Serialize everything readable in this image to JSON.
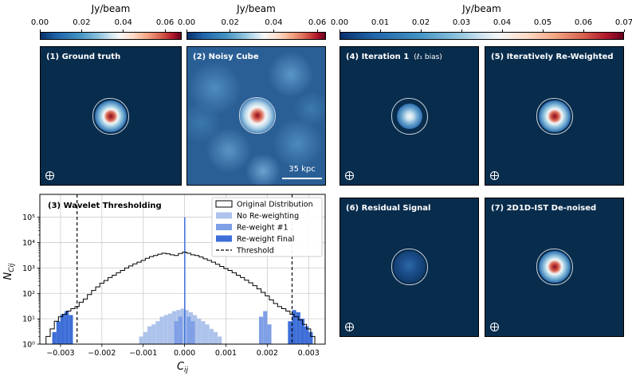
{
  "colorbars": {
    "left": {
      "title": "Jy/beam",
      "ticks": [
        "0.00",
        "0.02",
        "0.04",
        "0.06"
      ],
      "vmin": 0,
      "vmax": 0.068,
      "tick_values": [
        0,
        0.02,
        0.04,
        0.06
      ]
    },
    "middle": {
      "title": "Jy/beam",
      "ticks": [
        "0.00",
        "0.02",
        "0.04",
        "0.06"
      ],
      "vmin": 0,
      "vmax": 0.064,
      "tick_values": [
        0,
        0.02,
        0.04,
        0.06
      ]
    },
    "right": {
      "title": "Jy/beam",
      "ticks": [
        "0.00",
        "0.01",
        "0.02",
        "0.03",
        "0.04",
        "0.05",
        "0.06",
        "0.07"
      ],
      "vmin": 0,
      "vmax": 0.07,
      "tick_values": [
        0,
        0.01,
        0.02,
        0.03,
        0.04,
        0.05,
        0.06,
        0.07
      ]
    }
  },
  "panels": {
    "p1": {
      "label": "(1) Ground truth"
    },
    "p2": {
      "label": "(2) Noisy Cube",
      "scalebar": "35 kpc"
    },
    "p4": {
      "label": "(4) Iteration 1",
      "sublabel": "(ℓ₁ bias)"
    },
    "p5": {
      "label": "(5) Iteratively Re-Weighted"
    },
    "p6": {
      "label": "(6) Residual Signal"
    },
    "p7": {
      "label": "(7) 2D1D-IST De-noised"
    }
  },
  "chart_data": {
    "type": "histogram",
    "title": "(3) Wavelet Thresholding",
    "xlabel": "C_ij",
    "ylabel": "N_Cij",
    "xlim": [
      -0.0035,
      0.0034
    ],
    "ylim_log10": [
      0,
      5.9
    ],
    "x_ticks": [
      -0.003,
      -0.002,
      -0.001,
      0.0,
      0.001,
      0.002,
      0.003
    ],
    "x_tick_labels": [
      "−0.003",
      "−0.002",
      "−0.001",
      "0.000",
      "0.001",
      "0.002",
      "0.003"
    ],
    "y_ticks_exp": [
      0,
      1,
      2,
      3,
      4,
      5
    ],
    "y_tick_labels": [
      "10⁰",
      "10¹",
      "10²",
      "10³",
      "10⁴",
      "10⁵"
    ],
    "threshold": [
      -0.0026,
      0.0026
    ],
    "legend": [
      "Original Distribution",
      "No Re-weighting",
      "Re-weight #1",
      "Re-weight Final",
      "Threshold"
    ],
    "legend_position": "top-right",
    "series": [
      {
        "name": "Original Distribution",
        "x": [
          -0.0033,
          -0.0032,
          -0.0031,
          -0.003,
          -0.0029,
          -0.0028,
          -0.0027,
          -0.0026,
          -0.0025,
          -0.0024,
          -0.0023,
          -0.0022,
          -0.0021,
          -0.002,
          -0.0019,
          -0.0018,
          -0.0017,
          -0.0016,
          -0.0015,
          -0.0014,
          -0.0013,
          -0.0012,
          -0.0011,
          -0.001,
          -0.0009,
          -0.0008,
          -0.0007,
          -0.0006,
          -0.0005,
          -0.0004,
          -0.0003,
          -0.0002,
          -0.0001,
          0.0,
          0.0001,
          0.0002,
          0.0003,
          0.0004,
          0.0005,
          0.0006,
          0.0007,
          0.0008,
          0.0009,
          0.001,
          0.0011,
          0.0012,
          0.0013,
          0.0014,
          0.0015,
          0.0016,
          0.0017,
          0.0018,
          0.0019,
          0.002,
          0.0021,
          0.0022,
          0.0023,
          0.0024,
          0.0025,
          0.0026,
          0.0027,
          0.0028,
          0.0029,
          0.003,
          0.0031,
          0.0032
        ],
        "values": [
          2,
          4,
          8,
          12,
          15,
          20,
          25,
          30,
          45,
          60,
          90,
          130,
          180,
          250,
          320,
          420,
          520,
          650,
          800,
          1000,
          1200,
          1450,
          1700,
          2000,
          2400,
          2800,
          3100,
          3500,
          3800,
          3600,
          3300,
          3100,
          3700,
          4200,
          3800,
          3300,
          3100,
          2700,
          2300,
          2000,
          1700,
          1400,
          1150,
          950,
          800,
          650,
          520,
          420,
          330,
          260,
          200,
          150,
          110,
          80,
          55,
          40,
          30,
          25,
          20,
          15,
          12,
          9,
          6,
          4,
          2,
          1
        ]
      },
      {
        "name": "No Re-weighting",
        "x": [
          -0.00105,
          -0.00095,
          -0.00085,
          -0.00075,
          -0.00065,
          -0.00055,
          -0.00045,
          -0.00035,
          -0.00025,
          -0.00015,
          -5e-05,
          5e-05,
          0.00015,
          0.00025,
          0.00035,
          0.00045,
          0.00055,
          0.00065,
          0.00075,
          0.00085
        ],
        "values": [
          2,
          3,
          5,
          6,
          8,
          12,
          14,
          16,
          20,
          22,
          25,
          22,
          18,
          14,
          10,
          8,
          6,
          4,
          3,
          2
        ]
      },
      {
        "name": "Re-weight #1",
        "x": [
          -0.0002,
          -0.0001,
          0.0001,
          0.0002,
          0.00185,
          0.00195,
          0.00205
        ],
        "values": [
          8,
          12,
          12,
          8,
          12,
          20,
          6
        ]
      },
      {
        "name": "Re-weight Final",
        "x": [
          -0.00315,
          -0.00305,
          -0.00295,
          -0.00285,
          -0.00275,
          0.0,
          0.00255,
          0.00265,
          0.00275,
          0.00285,
          0.00295,
          0.00305
        ],
        "values": [
          3,
          8,
          15,
          20,
          14,
          100000,
          8,
          22,
          18,
          10,
          5,
          3
        ]
      }
    ]
  }
}
